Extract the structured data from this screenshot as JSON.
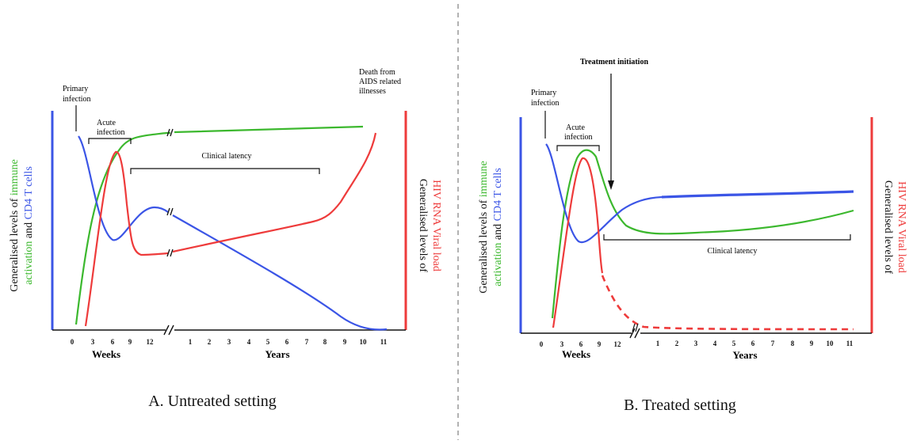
{
  "colors": {
    "cd4": "#3b55e6",
    "immune": "#3cb82e",
    "viral": "#ee3b3b",
    "axis_text": "#111111",
    "divider": "#999999"
  },
  "panel_a": {
    "caption": "A. Untreated setting",
    "y_left_label": {
      "prefix": "Generalised levels of ",
      "immune_word": "immune",
      "line2_green": "activation",
      "line2_mid": " and ",
      "line2_blue": "CD4 T cells"
    },
    "y_right_label": {
      "line1": "Generalised levels of",
      "line2": "HIV RNA Viral load"
    },
    "weeks_ticks": [
      "0",
      "3",
      "6",
      "9",
      "12"
    ],
    "years_ticks": [
      "1",
      "2",
      "3",
      "4",
      "5",
      "6",
      "7",
      "8",
      "9",
      "10",
      "11"
    ],
    "weeks_label": "Weeks",
    "years_label": "Years",
    "annotations": {
      "primary_infection": [
        "Primary",
        "infection"
      ],
      "acute_infection": [
        "Acute",
        "infection"
      ],
      "clinical_latency": "Clinical latency",
      "death": [
        "Death from",
        "AIDS related",
        "illnesses"
      ]
    }
  },
  "panel_b": {
    "caption": "B. Treated setting",
    "y_left_label": {
      "prefix": "Generalised levels of ",
      "immune_word": "immune",
      "line2_green": "activation",
      "line2_mid": " and ",
      "line2_blue": "CD4 T cells"
    },
    "y_right_label": {
      "line1": "Generalised levels of",
      "line2": "HIV RNA Viral load"
    },
    "weeks_ticks": [
      "0",
      "3",
      "6",
      "9",
      "12"
    ],
    "years_ticks": [
      "1",
      "2",
      "3",
      "4",
      "5",
      "6",
      "7",
      "8",
      "9",
      "10",
      "11"
    ],
    "weeks_label": "Weeks",
    "years_label": "Years",
    "annotations": {
      "treatment_initiation": "Treatment initiation",
      "primary_infection": [
        "Primary",
        "infection"
      ],
      "acute_infection": [
        "Acute",
        "infection"
      ],
      "clinical_latency": "Clinical latency"
    }
  }
}
